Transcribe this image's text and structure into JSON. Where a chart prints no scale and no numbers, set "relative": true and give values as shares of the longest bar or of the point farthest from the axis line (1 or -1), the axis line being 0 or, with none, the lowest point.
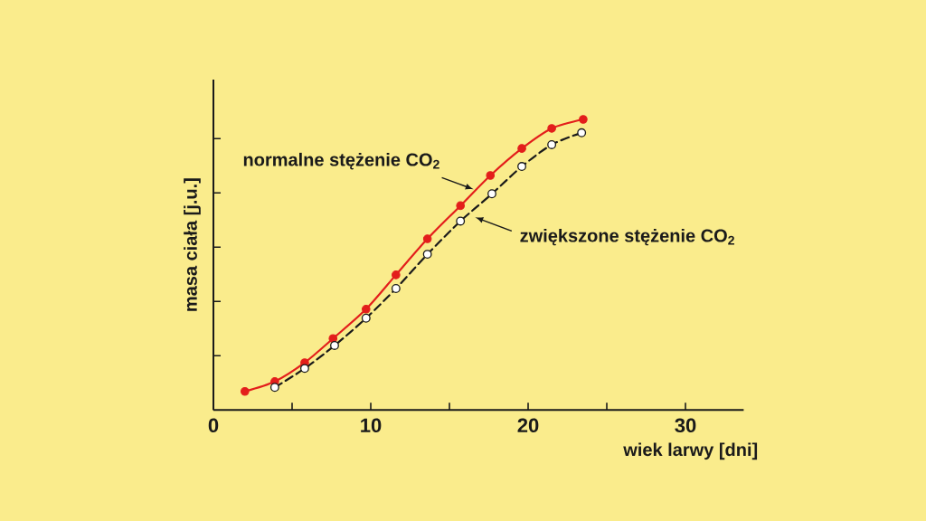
{
  "chart_data": {
    "type": "line",
    "xlabel": "wiek larwy [dni]",
    "ylabel": "masa ciała [j.u.]",
    "xlim": [
      0,
      33.7
    ],
    "xticks": [
      0,
      {
        "value": 5,
        "label": null
      },
      10,
      {
        "value": 15,
        "label": null
      },
      20,
      {
        "value": 25,
        "label": null
      },
      30
    ],
    "relative": true,
    "tick_labels": "x",
    "marker": "circle",
    "series": [
      {
        "color": "#e31e1b",
        "line_style": "solid",
        "x": [
          2.0,
          3.9,
          5.8,
          7.6,
          9.7,
          11.6,
          13.6,
          15.7,
          17.6,
          19.6,
          21.5,
          23.5
        ],
        "values": [
          0.064,
          0.098,
          0.163,
          0.246,
          0.347,
          0.465,
          0.589,
          0.703,
          0.807,
          0.9,
          0.969,
          1.0
        ]
      },
      {
        "color": "#1a1a1a",
        "colors": [
          "#ffffff",
          "#ffffff",
          "#ffffff",
          "#ffffff",
          "#ffffff",
          "#ffffff",
          "#ffffff",
          "#ffffff",
          "#ffffff",
          "#ffffff",
          "#ffffff"
        ],
        "line_style": "dashed",
        "x": [
          3.9,
          5.8,
          7.7,
          9.7,
          11.6,
          13.6,
          15.7,
          17.7,
          19.6,
          21.5,
          23.4
        ],
        "values": [
          0.078,
          0.143,
          0.222,
          0.316,
          0.418,
          0.536,
          0.65,
          0.744,
          0.838,
          0.913,
          0.954
        ]
      }
    ],
    "annotations": [
      {
        "text": "normalne stężenie CO$_{2}$",
        "x": 16.7,
        "y": 0.756
      },
      {
        "text": "zwiększone stężenie CO$_{2}$",
        "x": 16.2,
        "y": 0.672
      }
    ]
  }
}
